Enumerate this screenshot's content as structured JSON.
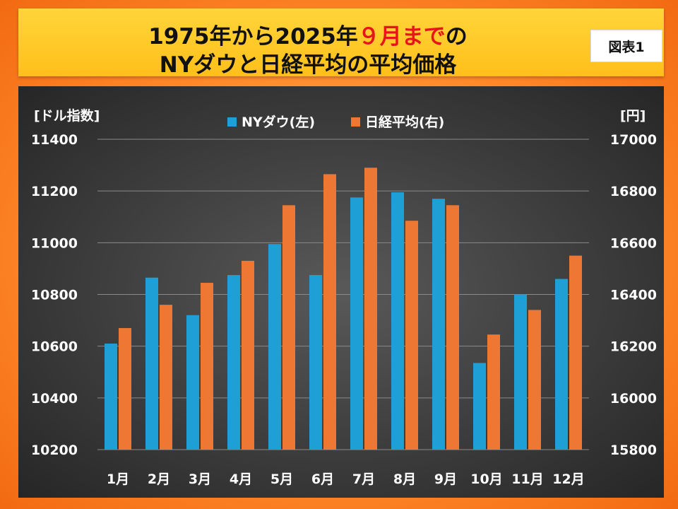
{
  "title": {
    "line1_before": "1975年から2025年",
    "line1_highlight": "９月まで",
    "line1_after": "の",
    "line2": "NYダウと日経平均の平均価格"
  },
  "figure_badge": "図表1",
  "colors": {
    "series_ny": "#1e9fd6",
    "series_nikkei": "#ee7733",
    "title_highlight": "#e8141c",
    "panel_bg": "#3a3a3a",
    "gridline": "#8a8a8a"
  },
  "chart_data": {
    "type": "bar",
    "categories": [
      "1月",
      "2月",
      "3月",
      "4月",
      "5月",
      "6月",
      "7月",
      "8月",
      "9月",
      "10月",
      "11月",
      "12月"
    ],
    "series": [
      {
        "name": "NYダウ(左)",
        "axis": "left",
        "values": [
          10610,
          10865,
          10720,
          10875,
          10995,
          10875,
          11175,
          11195,
          11170,
          10535,
          10800,
          10860
        ]
      },
      {
        "name": "日経平均(右)",
        "axis": "right",
        "values": [
          16270,
          16360,
          16445,
          16530,
          16745,
          16865,
          16890,
          16685,
          16745,
          16245,
          16340,
          16550
        ]
      }
    ],
    "left_axis": {
      "label": "[ドル指数]",
      "ylim": [
        10200,
        11400
      ],
      "ticks": [
        "11400",
        "11200",
        "11000",
        "10800",
        "10600",
        "10400",
        "10200"
      ]
    },
    "right_axis": {
      "label": "[円]",
      "ylim": [
        15800,
        17000
      ],
      "ticks": [
        "17000",
        "16800",
        "16600",
        "16400",
        "16200",
        "16000",
        "15800"
      ]
    },
    "legend_position": "top-center",
    "grid": true
  }
}
